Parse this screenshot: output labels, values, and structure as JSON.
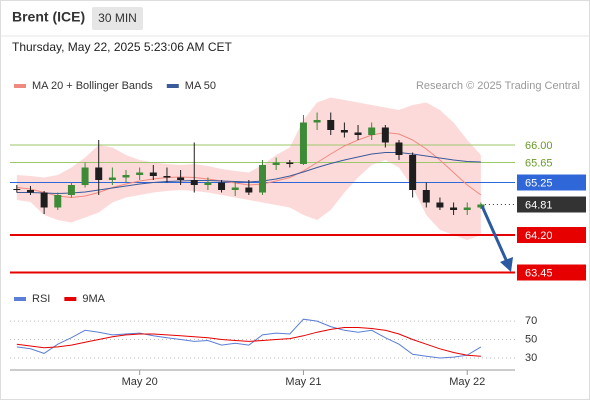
{
  "header": {
    "title": "Brent (ICE)",
    "interval": "30 MIN",
    "timestamp": "Thursday, May 22, 2025 5:23:06 AM CET"
  },
  "chart_data": {
    "type": "candlestick",
    "source": "Research © 2025 Trading Central",
    "categories": [
      null,
      null,
      null,
      null,
      null,
      null,
      null,
      null,
      null,
      "May 20",
      null,
      null,
      null,
      null,
      null,
      null,
      null,
      null,
      null,
      null,
      null,
      "May 21",
      null,
      null,
      null,
      null,
      null,
      null,
      null,
      null,
      null,
      null,
      null,
      "May 22",
      null,
      null,
      null
    ],
    "open": [
      65.12,
      65.1,
      65.05,
      64.75,
      65.0,
      65.2,
      65.55,
      65.3,
      65.35,
      65.4,
      65.45,
      65.38,
      65.35,
      65.3,
      65.2,
      65.25,
      65.1,
      65.15,
      65.05,
      65.6,
      65.65,
      65.62,
      66.45,
      66.5,
      66.3,
      66.25,
      66.2,
      66.35,
      66.05,
      65.8,
      65.1,
      64.85,
      64.75,
      64.7,
      64.75,
      null,
      null
    ],
    "high": [
      65.2,
      65.18,
      65.08,
      65.05,
      65.25,
      65.65,
      66.1,
      65.55,
      65.5,
      65.55,
      65.6,
      65.55,
      65.5,
      66.05,
      65.35,
      65.3,
      65.25,
      65.3,
      65.7,
      65.75,
      65.7,
      66.6,
      66.65,
      66.65,
      66.45,
      66.4,
      66.45,
      66.4,
      66.1,
      65.85,
      65.25,
      64.95,
      64.85,
      64.85,
      64.85,
      null,
      null
    ],
    "low": [
      65.05,
      65.0,
      64.62,
      64.7,
      64.95,
      65.15,
      65.0,
      65.2,
      65.25,
      65.3,
      65.3,
      65.25,
      65.2,
      65.05,
      65.1,
      65.05,
      64.98,
      65.0,
      65.0,
      65.5,
      65.55,
      65.6,
      66.3,
      66.2,
      66.15,
      66.1,
      66.1,
      65.95,
      65.7,
      64.95,
      64.75,
      64.7,
      64.6,
      64.6,
      64.72,
      null,
      null
    ],
    "close": [
      65.1,
      65.05,
      64.75,
      65.0,
      65.2,
      65.55,
      65.3,
      65.35,
      65.4,
      65.45,
      65.38,
      65.35,
      65.3,
      65.2,
      65.25,
      65.1,
      65.15,
      65.05,
      65.6,
      65.65,
      65.62,
      66.45,
      66.5,
      66.3,
      66.25,
      66.2,
      66.35,
      66.05,
      65.8,
      65.1,
      64.85,
      64.75,
      64.7,
      64.75,
      64.81,
      null,
      null
    ],
    "up_color": "#3d8b37",
    "down_color": "#1e1e1e",
    "series": [
      {
        "name": "MA 20 + Bollinger Bands",
        "color": "#f08a80",
        "band_color": "#fddada",
        "values": [
          65.15,
          65.12,
          65.05,
          64.98,
          64.95,
          64.98,
          65.05,
          65.15,
          65.22,
          65.28,
          65.32,
          65.35,
          65.36,
          65.35,
          65.32,
          65.28,
          65.24,
          65.2,
          65.22,
          65.28,
          65.35,
          65.48,
          65.65,
          65.82,
          65.98,
          66.1,
          66.2,
          66.25,
          66.22,
          66.1,
          65.92,
          65.7,
          65.45,
          65.2,
          65.0,
          null,
          null
        ],
        "upper": [
          65.4,
          65.38,
          65.35,
          65.4,
          65.55,
          65.75,
          66.0,
          65.95,
          65.8,
          65.7,
          65.65,
          65.62,
          65.6,
          65.62,
          65.58,
          65.52,
          65.48,
          65.45,
          65.6,
          65.8,
          65.95,
          66.5,
          66.85,
          66.95,
          66.9,
          66.85,
          66.8,
          66.75,
          66.7,
          66.8,
          66.85,
          66.7,
          66.45,
          66.1,
          65.8,
          null,
          null
        ],
        "lower": [
          64.9,
          64.86,
          64.6,
          64.5,
          64.45,
          64.55,
          64.65,
          64.85,
          64.95,
          65.0,
          65.05,
          65.08,
          65.1,
          65.08,
          65.05,
          65.0,
          64.95,
          64.9,
          64.85,
          64.8,
          64.75,
          64.6,
          64.5,
          64.7,
          65.05,
          65.35,
          65.6,
          65.7,
          65.55,
          65.15,
          64.6,
          64.3,
          64.2,
          64.1,
          64.2,
          null,
          null
        ]
      },
      {
        "name": "MA 50",
        "color": "#3a5a9a",
        "values": [
          65.05,
          65.05,
          65.04,
          65.03,
          65.04,
          65.06,
          65.1,
          65.14,
          65.18,
          65.22,
          65.25,
          65.27,
          65.28,
          65.29,
          65.29,
          65.28,
          65.27,
          65.26,
          65.28,
          65.32,
          65.38,
          65.46,
          65.55,
          65.63,
          65.7,
          65.76,
          65.82,
          65.85,
          65.85,
          65.82,
          65.78,
          65.74,
          65.7,
          65.67,
          65.66,
          null,
          null
        ]
      }
    ],
    "ylim": [
      63.2,
      67.0
    ],
    "levels": [
      {
        "value": 66,
        "label": "66.00",
        "color": "#9cc76a",
        "boxed": false
      },
      {
        "value": 65.65,
        "label": "65.65",
        "color": "#9cc76a",
        "boxed": false
      },
      {
        "value": 65.25,
        "label": "65.25",
        "color": "#2f66d8",
        "boxed": true
      },
      {
        "value": 64.81,
        "label": "64.81",
        "color": "#333333",
        "boxed": true,
        "dotted": true
      },
      {
        "value": 64.2,
        "label": "64.20",
        "color": "#e60000",
        "boxed": true
      },
      {
        "value": 63.45,
        "label": "63.45",
        "color": "#e60000",
        "boxed": true
      }
    ],
    "rsi": {
      "ylim": [
        17,
        82
      ],
      "yticks": [
        70,
        50,
        30
      ],
      "series": [
        {
          "name": "RSI",
          "color": "#5b7fd6",
          "values": [
            42,
            40,
            35,
            45,
            52,
            60,
            58,
            55,
            56,
            57,
            54,
            52,
            50,
            48,
            49,
            44,
            46,
            44,
            55,
            57,
            56,
            72,
            70,
            64,
            60,
            58,
            60,
            52,
            45,
            34,
            32,
            30,
            31,
            33,
            42,
            null,
            null
          ]
        },
        {
          "name": "9MA",
          "color": "#e60000",
          "values": [
            45,
            43,
            41,
            42,
            44,
            47,
            50,
            53,
            55,
            56,
            56,
            55,
            54,
            53,
            52,
            50,
            49,
            48,
            49,
            50,
            51,
            54,
            58,
            61,
            63,
            63,
            62,
            60,
            56,
            50,
            45,
            40,
            36,
            33,
            32,
            null,
            null
          ]
        }
      ]
    }
  }
}
